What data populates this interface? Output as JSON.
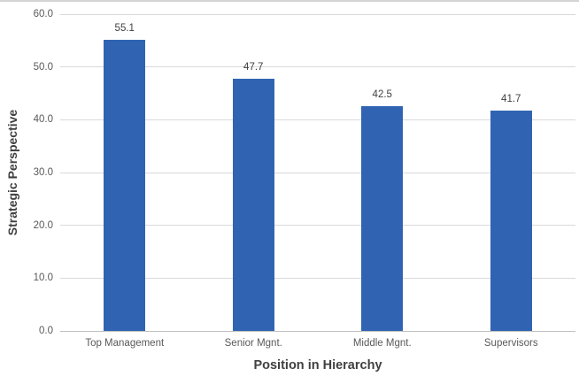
{
  "chart_data": {
    "type": "bar",
    "categories": [
      "Top Management",
      "Senior Mgnt.",
      "Middle Mgnt.",
      "Supervisors"
    ],
    "values": [
      55.1,
      47.7,
      42.5,
      41.7
    ],
    "data_labels": [
      "55.1",
      "47.7",
      "42.5",
      "41.7"
    ],
    "title": "",
    "xlabel": "Position in Hierarchy",
    "ylabel": "Strategic Perspective",
    "ylim": [
      0,
      60
    ],
    "ytick_step": 10,
    "ytick_labels": [
      "0.0",
      "10.0",
      "20.0",
      "30.0",
      "40.0",
      "50.0",
      "60.0"
    ],
    "grid": true,
    "legend": "none",
    "colors": {
      "bar": "#3064b2",
      "gridline": "#d9d9d9",
      "axis_line": "#bfbfbf",
      "tick_text": "#595959",
      "label_text": "#404040"
    }
  }
}
